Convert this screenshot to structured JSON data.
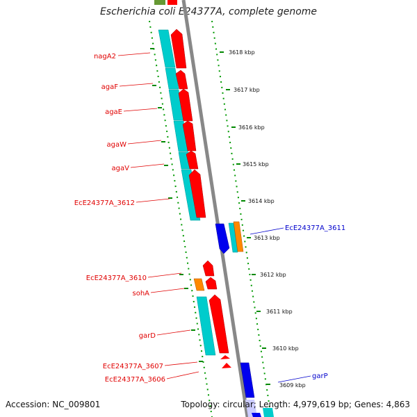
{
  "title": "Escherichia coli E24377A, complete genome",
  "footer": {
    "accession": "Accession: NC_009801",
    "summary": "Topology: circular; Length: 4,979,619 bp; Genes: 4,863"
  },
  "colors": {
    "forward_gene": "#ff0000",
    "reverse_gene": "#0000ee",
    "cds_cyan": "#00cccc",
    "pseudo_orange": "#ff8800",
    "backbone": "#888888",
    "tick": "#008800",
    "label_red": "#e00000",
    "label_blue": "#0000cc"
  },
  "gene_labels": [
    {
      "name": "nagA2",
      "color": "red"
    },
    {
      "name": "agaF",
      "color": "red"
    },
    {
      "name": "agaE",
      "color": "red"
    },
    {
      "name": "agaW",
      "color": "red"
    },
    {
      "name": "agaV",
      "color": "red"
    },
    {
      "name": "EcE24377A_3612",
      "color": "red"
    },
    {
      "name": "EcE24377A_3611",
      "color": "blue"
    },
    {
      "name": "EcE24377A_3610",
      "color": "red"
    },
    {
      "name": "sohA",
      "color": "red"
    },
    {
      "name": "garD",
      "color": "red"
    },
    {
      "name": "EcE24377A_3607",
      "color": "red"
    },
    {
      "name": "EcE24377A_3606",
      "color": "red"
    },
    {
      "name": "garP",
      "color": "blue"
    }
  ],
  "ticks": [
    "3618 kbp",
    "3617 kbp",
    "3616 kbp",
    "3615 kbp",
    "3614 kbp",
    "3613 kbp",
    "3612 kbp",
    "3611 kbp",
    "3610 kbp",
    "3609 kbp"
  ]
}
